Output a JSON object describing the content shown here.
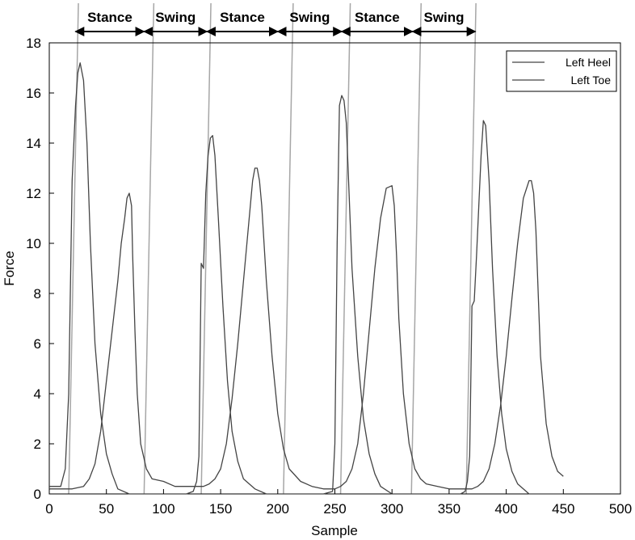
{
  "chart_data": {
    "type": "line",
    "xlabel": "Sample",
    "ylabel": "Force",
    "xlim": [
      0,
      500
    ],
    "ylim": [
      0,
      18
    ],
    "xticks": [
      0,
      50,
      100,
      150,
      200,
      250,
      300,
      350,
      400,
      450,
      500
    ],
    "yticks": [
      0,
      2,
      4,
      6,
      8,
      10,
      12,
      14,
      16,
      18
    ],
    "grid": false,
    "legend_position": "top-right",
    "colors": {
      "series": "#444444",
      "phase_lines": "#a6a6a6",
      "arrows": "#000000",
      "axis": "#000000"
    },
    "series": [
      {
        "name": "Left Heel",
        "x": [
          0,
          10,
          14,
          17,
          20,
          23,
          25,
          27,
          30,
          33,
          36,
          40,
          45,
          50,
          55,
          60,
          70,
          80,
          90,
          100,
          110,
          120,
          126,
          129,
          131,
          133,
          135,
          137,
          139,
          141,
          143,
          145,
          148,
          152,
          156,
          160,
          165,
          170,
          180,
          190,
          200,
          210,
          220,
          230,
          240,
          248,
          250,
          252,
          254,
          256,
          258,
          260,
          262,
          265,
          270,
          275,
          280,
          285,
          290,
          300,
          310,
          320,
          330,
          340,
          350,
          360,
          364,
          366,
          368,
          370,
          372,
          374,
          376,
          378,
          380,
          382,
          385,
          388,
          392,
          396,
          400,
          405,
          410,
          420,
          430,
          440,
          450
        ],
        "values": [
          0.3,
          0.3,
          1.0,
          4.0,
          12.5,
          15.5,
          16.8,
          17.2,
          16.5,
          14.0,
          10.0,
          6.0,
          3.2,
          1.6,
          0.8,
          0.2,
          0.0,
          0.0,
          0.0,
          0.0,
          0.0,
          0.0,
          0.1,
          0.5,
          1.5,
          9.2,
          9.0,
          12.0,
          13.5,
          14.2,
          14.3,
          13.5,
          11.0,
          7.5,
          4.5,
          2.5,
          1.3,
          0.6,
          0.2,
          0.0,
          0.0,
          0.0,
          0.0,
          0.0,
          0.0,
          0.1,
          2.0,
          10.0,
          15.5,
          15.9,
          15.7,
          14.8,
          12.5,
          9.0,
          5.5,
          3.0,
          1.6,
          0.8,
          0.3,
          0.0,
          0.0,
          0.0,
          0.0,
          0.0,
          0.0,
          0.0,
          0.1,
          0.5,
          1.5,
          7.5,
          7.7,
          9.5,
          11.5,
          13.5,
          14.9,
          14.7,
          12.5,
          9.0,
          5.5,
          3.2,
          1.8,
          0.9,
          0.4,
          0.0,
          0.0,
          0.0,
          0.0
        ]
      },
      {
        "name": "Left Toe",
        "x": [
          0,
          10,
          20,
          30,
          35,
          40,
          45,
          50,
          55,
          60,
          63,
          66,
          68,
          70,
          72,
          73,
          75,
          77,
          80,
          85,
          90,
          100,
          110,
          120,
          130,
          135,
          140,
          145,
          150,
          155,
          160,
          165,
          170,
          175,
          178,
          180,
          182,
          184,
          186,
          190,
          195,
          200,
          205,
          210,
          220,
          230,
          240,
          250,
          255,
          260,
          265,
          270,
          275,
          280,
          285,
          290,
          295,
          300,
          302,
          304,
          306,
          310,
          315,
          320,
          325,
          330,
          340,
          350,
          360,
          370,
          375,
          380,
          385,
          390,
          395,
          400,
          405,
          410,
          415,
          420,
          422,
          424,
          426,
          430,
          435,
          440,
          445,
          450
        ],
        "values": [
          0.2,
          0.2,
          0.2,
          0.3,
          0.6,
          1.2,
          2.5,
          4.5,
          6.5,
          8.5,
          10.0,
          11.0,
          11.8,
          12.0,
          11.5,
          9.5,
          6.5,
          4.0,
          2.0,
          1.0,
          0.6,
          0.5,
          0.3,
          0.3,
          0.3,
          0.3,
          0.4,
          0.6,
          1.0,
          2.0,
          3.8,
          6.0,
          8.5,
          11.0,
          12.5,
          13.0,
          13.0,
          12.5,
          11.5,
          8.5,
          5.5,
          3.2,
          1.8,
          1.0,
          0.5,
          0.3,
          0.2,
          0.2,
          0.3,
          0.5,
          1.0,
          2.0,
          4.0,
          6.5,
          9.0,
          11.0,
          12.2,
          12.3,
          11.5,
          9.5,
          7.0,
          4.0,
          2.0,
          1.0,
          0.6,
          0.4,
          0.3,
          0.2,
          0.2,
          0.2,
          0.3,
          0.5,
          1.0,
          2.0,
          3.5,
          5.5,
          7.8,
          10.0,
          11.8,
          12.5,
          12.5,
          12.0,
          10.5,
          5.5,
          2.8,
          1.5,
          0.9,
          0.7
        ]
      }
    ],
    "phase_boundaries": [
      17,
      83,
      133,
      205,
      255,
      317,
      365
    ],
    "phases": [
      {
        "label": "Stance",
        "start": 23,
        "end": 83
      },
      {
        "label": "Swing",
        "start": 83,
        "end": 138
      },
      {
        "label": "Stance",
        "start": 138,
        "end": 200
      },
      {
        "label": "Swing",
        "start": 200,
        "end": 256
      },
      {
        "label": "Stance",
        "start": 256,
        "end": 318
      },
      {
        "label": "Swing",
        "start": 318,
        "end": 373
      }
    ]
  }
}
